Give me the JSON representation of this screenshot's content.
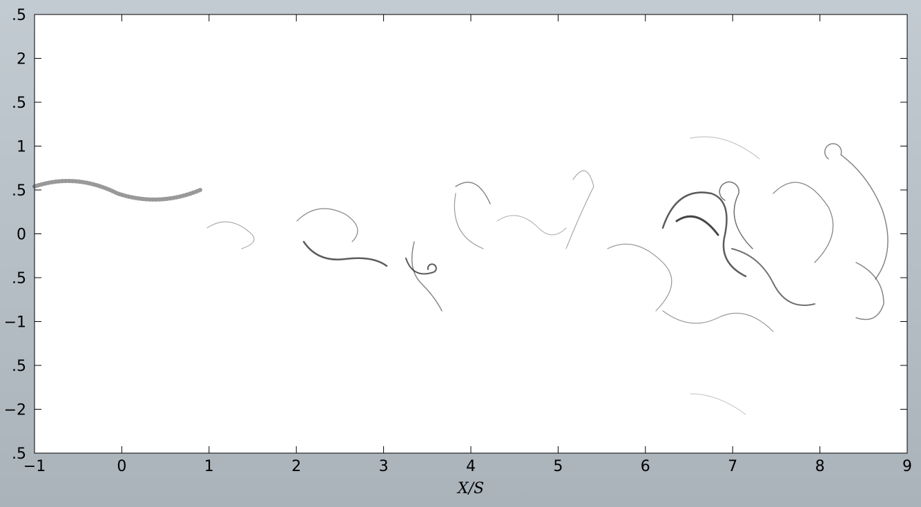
{
  "chart_data": {
    "type": "image",
    "xlabel": "X/S",
    "xlim": [
      -1,
      9
    ],
    "xticks": [
      {
        "value": -1,
        "label": "−1"
      },
      0,
      1,
      2,
      3,
      4,
      5,
      6,
      7,
      8,
      9
    ],
    "ylim": [
      -2.5,
      2.5
    ],
    "yticks": [
      {
        "value": 2.5,
        "label": ".5"
      },
      2,
      {
        "value": 1.5,
        "label": ".5"
      },
      1,
      {
        "value": 0.5,
        "label": ".5"
      },
      0,
      {
        "value": -0.5,
        "label": ".5"
      },
      {
        "value": -1,
        "label": "−1"
      },
      {
        "value": -1.5,
        "label": ".5"
      },
      {
        "value": -2,
        "label": "−2"
      },
      {
        "value": -2.5,
        "label": ".5"
      }
    ]
  }
}
